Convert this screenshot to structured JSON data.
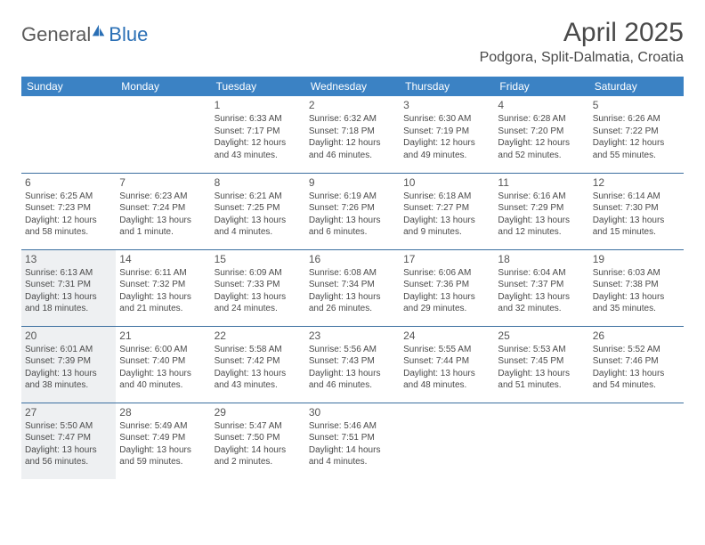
{
  "logo": {
    "general": "General",
    "blue": "Blue"
  },
  "title": "April 2025",
  "location": "Podgora, Split-Dalmatia, Croatia",
  "colors": {
    "header_bg": "#3b82c4",
    "header_text": "#ffffff",
    "row_border": "#3b6fa0",
    "shaded_bg": "#eef0f2",
    "body_text": "#4a4a4a",
    "logo_gray": "#5a5a5a",
    "logo_blue": "#2a6fb5"
  },
  "fonts": {
    "title_size": 30,
    "location_size": 16,
    "weekday_size": 12,
    "daynum_size": 12,
    "cell_size": 10
  },
  "weekdays": [
    "Sunday",
    "Monday",
    "Tuesday",
    "Wednesday",
    "Thursday",
    "Friday",
    "Saturday"
  ],
  "weeks": [
    [
      {
        "day": "",
        "sunrise": "",
        "sunset": "",
        "daylight": "",
        "shaded": false
      },
      {
        "day": "",
        "sunrise": "",
        "sunset": "",
        "daylight": "",
        "shaded": false
      },
      {
        "day": "1",
        "sunrise": "Sunrise: 6:33 AM",
        "sunset": "Sunset: 7:17 PM",
        "daylight": "Daylight: 12 hours and 43 minutes.",
        "shaded": false
      },
      {
        "day": "2",
        "sunrise": "Sunrise: 6:32 AM",
        "sunset": "Sunset: 7:18 PM",
        "daylight": "Daylight: 12 hours and 46 minutes.",
        "shaded": false
      },
      {
        "day": "3",
        "sunrise": "Sunrise: 6:30 AM",
        "sunset": "Sunset: 7:19 PM",
        "daylight": "Daylight: 12 hours and 49 minutes.",
        "shaded": false
      },
      {
        "day": "4",
        "sunrise": "Sunrise: 6:28 AM",
        "sunset": "Sunset: 7:20 PM",
        "daylight": "Daylight: 12 hours and 52 minutes.",
        "shaded": false
      },
      {
        "day": "5",
        "sunrise": "Sunrise: 6:26 AM",
        "sunset": "Sunset: 7:22 PM",
        "daylight": "Daylight: 12 hours and 55 minutes.",
        "shaded": false
      }
    ],
    [
      {
        "day": "6",
        "sunrise": "Sunrise: 6:25 AM",
        "sunset": "Sunset: 7:23 PM",
        "daylight": "Daylight: 12 hours and 58 minutes.",
        "shaded": false
      },
      {
        "day": "7",
        "sunrise": "Sunrise: 6:23 AM",
        "sunset": "Sunset: 7:24 PM",
        "daylight": "Daylight: 13 hours and 1 minute.",
        "shaded": false
      },
      {
        "day": "8",
        "sunrise": "Sunrise: 6:21 AM",
        "sunset": "Sunset: 7:25 PM",
        "daylight": "Daylight: 13 hours and 4 minutes.",
        "shaded": false
      },
      {
        "day": "9",
        "sunrise": "Sunrise: 6:19 AM",
        "sunset": "Sunset: 7:26 PM",
        "daylight": "Daylight: 13 hours and 6 minutes.",
        "shaded": false
      },
      {
        "day": "10",
        "sunrise": "Sunrise: 6:18 AM",
        "sunset": "Sunset: 7:27 PM",
        "daylight": "Daylight: 13 hours and 9 minutes.",
        "shaded": false
      },
      {
        "day": "11",
        "sunrise": "Sunrise: 6:16 AM",
        "sunset": "Sunset: 7:29 PM",
        "daylight": "Daylight: 13 hours and 12 minutes.",
        "shaded": false
      },
      {
        "day": "12",
        "sunrise": "Sunrise: 6:14 AM",
        "sunset": "Sunset: 7:30 PM",
        "daylight": "Daylight: 13 hours and 15 minutes.",
        "shaded": false
      }
    ],
    [
      {
        "day": "13",
        "sunrise": "Sunrise: 6:13 AM",
        "sunset": "Sunset: 7:31 PM",
        "daylight": "Daylight: 13 hours and 18 minutes.",
        "shaded": true
      },
      {
        "day": "14",
        "sunrise": "Sunrise: 6:11 AM",
        "sunset": "Sunset: 7:32 PM",
        "daylight": "Daylight: 13 hours and 21 minutes.",
        "shaded": false
      },
      {
        "day": "15",
        "sunrise": "Sunrise: 6:09 AM",
        "sunset": "Sunset: 7:33 PM",
        "daylight": "Daylight: 13 hours and 24 minutes.",
        "shaded": false
      },
      {
        "day": "16",
        "sunrise": "Sunrise: 6:08 AM",
        "sunset": "Sunset: 7:34 PM",
        "daylight": "Daylight: 13 hours and 26 minutes.",
        "shaded": false
      },
      {
        "day": "17",
        "sunrise": "Sunrise: 6:06 AM",
        "sunset": "Sunset: 7:36 PM",
        "daylight": "Daylight: 13 hours and 29 minutes.",
        "shaded": false
      },
      {
        "day": "18",
        "sunrise": "Sunrise: 6:04 AM",
        "sunset": "Sunset: 7:37 PM",
        "daylight": "Daylight: 13 hours and 32 minutes.",
        "shaded": false
      },
      {
        "day": "19",
        "sunrise": "Sunrise: 6:03 AM",
        "sunset": "Sunset: 7:38 PM",
        "daylight": "Daylight: 13 hours and 35 minutes.",
        "shaded": false
      }
    ],
    [
      {
        "day": "20",
        "sunrise": "Sunrise: 6:01 AM",
        "sunset": "Sunset: 7:39 PM",
        "daylight": "Daylight: 13 hours and 38 minutes.",
        "shaded": true
      },
      {
        "day": "21",
        "sunrise": "Sunrise: 6:00 AM",
        "sunset": "Sunset: 7:40 PM",
        "daylight": "Daylight: 13 hours and 40 minutes.",
        "shaded": false
      },
      {
        "day": "22",
        "sunrise": "Sunrise: 5:58 AM",
        "sunset": "Sunset: 7:42 PM",
        "daylight": "Daylight: 13 hours and 43 minutes.",
        "shaded": false
      },
      {
        "day": "23",
        "sunrise": "Sunrise: 5:56 AM",
        "sunset": "Sunset: 7:43 PM",
        "daylight": "Daylight: 13 hours and 46 minutes.",
        "shaded": false
      },
      {
        "day": "24",
        "sunrise": "Sunrise: 5:55 AM",
        "sunset": "Sunset: 7:44 PM",
        "daylight": "Daylight: 13 hours and 48 minutes.",
        "shaded": false
      },
      {
        "day": "25",
        "sunrise": "Sunrise: 5:53 AM",
        "sunset": "Sunset: 7:45 PM",
        "daylight": "Daylight: 13 hours and 51 minutes.",
        "shaded": false
      },
      {
        "day": "26",
        "sunrise": "Sunrise: 5:52 AM",
        "sunset": "Sunset: 7:46 PM",
        "daylight": "Daylight: 13 hours and 54 minutes.",
        "shaded": false
      }
    ],
    [
      {
        "day": "27",
        "sunrise": "Sunrise: 5:50 AM",
        "sunset": "Sunset: 7:47 PM",
        "daylight": "Daylight: 13 hours and 56 minutes.",
        "shaded": true
      },
      {
        "day": "28",
        "sunrise": "Sunrise: 5:49 AM",
        "sunset": "Sunset: 7:49 PM",
        "daylight": "Daylight: 13 hours and 59 minutes.",
        "shaded": false
      },
      {
        "day": "29",
        "sunrise": "Sunrise: 5:47 AM",
        "sunset": "Sunset: 7:50 PM",
        "daylight": "Daylight: 14 hours and 2 minutes.",
        "shaded": false
      },
      {
        "day": "30",
        "sunrise": "Sunrise: 5:46 AM",
        "sunset": "Sunset: 7:51 PM",
        "daylight": "Daylight: 14 hours and 4 minutes.",
        "shaded": false
      },
      {
        "day": "",
        "sunrise": "",
        "sunset": "",
        "daylight": "",
        "shaded": false
      },
      {
        "day": "",
        "sunrise": "",
        "sunset": "",
        "daylight": "",
        "shaded": false
      },
      {
        "day": "",
        "sunrise": "",
        "sunset": "",
        "daylight": "",
        "shaded": false
      }
    ]
  ]
}
